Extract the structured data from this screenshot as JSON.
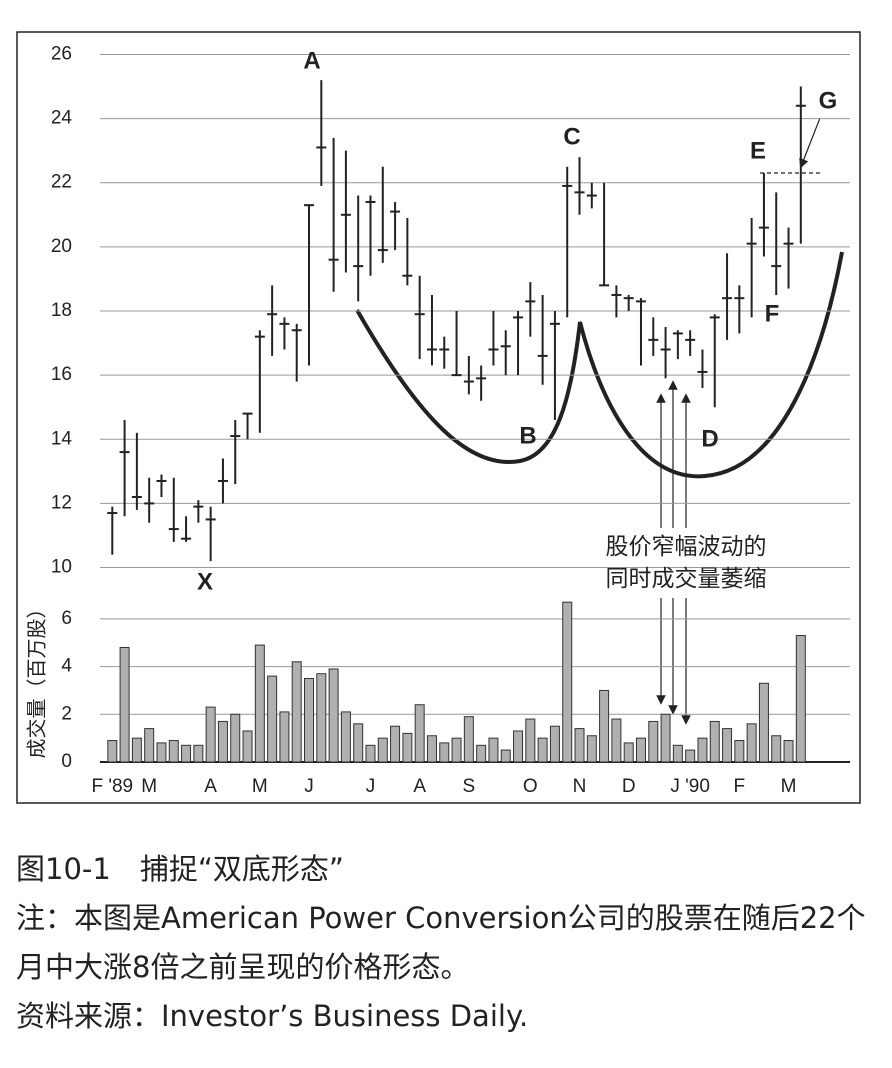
{
  "chart_data": [
    {
      "type": "hlc",
      "x": [
        0,
        1,
        2,
        3,
        4,
        5,
        6,
        7,
        8,
        9,
        10,
        11,
        12,
        13,
        14,
        15,
        16,
        17,
        18,
        19,
        20,
        21,
        22,
        23,
        24,
        25,
        26,
        27,
        28,
        29,
        30,
        31,
        32,
        33,
        34,
        35,
        36,
        37,
        38,
        39,
        40,
        41,
        42,
        43,
        44,
        45,
        46,
        47,
        48,
        49,
        50,
        51,
        52,
        53,
        54,
        55,
        56
      ],
      "high": [
        11.9,
        14.6,
        14.2,
        12.8,
        12.9,
        12.8,
        11.6,
        12.1,
        11.9,
        13.4,
        14.6,
        14.8,
        17.4,
        18.8,
        17.8,
        17.6,
        21.3,
        25.2,
        23.4,
        23.0,
        21.6,
        21.6,
        22.5,
        21.4,
        20.9,
        19.1,
        18.5,
        17.2,
        18.0,
        16.6,
        16.3,
        18.0,
        17.4,
        18.0,
        18.9,
        18.5,
        18.0,
        22.5,
        22.8,
        22.0,
        22.0,
        18.8,
        18.5,
        18.4,
        17.8,
        17.5,
        17.4,
        17.4,
        16.8,
        17.9,
        19.8,
        18.8,
        20.9,
        22.3,
        21.7,
        20.6,
        25.0
      ],
      "low": [
        10.4,
        11.6,
        11.8,
        11.4,
        12.2,
        10.8,
        10.8,
        11.4,
        10.2,
        12.0,
        12.6,
        14.0,
        14.2,
        16.6,
        16.8,
        15.8,
        16.3,
        21.9,
        18.6,
        19.2,
        18.3,
        19.1,
        19.5,
        19.9,
        18.8,
        16.5,
        16.3,
        16.2,
        16.0,
        15.4,
        15.2,
        16.3,
        16.0,
        16.0,
        17.2,
        15.7,
        14.6,
        17.8,
        21.0,
        21.2,
        18.8,
        17.8,
        18.0,
        16.3,
        16.6,
        15.9,
        16.5,
        16.6,
        15.6,
        15.0,
        17.1,
        17.3,
        17.8,
        19.7,
        18.5,
        18.7,
        20.1
      ],
      "close": [
        11.7,
        13.6,
        12.2,
        12.0,
        12.7,
        11.2,
        10.9,
        11.9,
        11.5,
        12.7,
        14.1,
        14.8,
        17.2,
        17.9,
        17.6,
        17.4,
        21.3,
        23.1,
        19.6,
        21.0,
        19.4,
        21.4,
        19.9,
        21.1,
        19.1,
        17.9,
        16.8,
        16.8,
        16.0,
        15.8,
        15.9,
        16.8,
        16.9,
        17.8,
        18.3,
        16.6,
        17.6,
        21.9,
        21.7,
        21.6,
        18.8,
        18.5,
        18.4,
        18.3,
        17.1,
        16.8,
        17.3,
        17.1,
        16.1,
        17.8,
        18.4,
        18.4,
        20.1,
        20.6,
        19.4,
        20.1,
        24.4
      ],
      "xlim": [
        -1,
        60
      ],
      "ylim": [
        9.3,
        26.7
      ],
      "yticks": [
        10,
        12,
        14,
        16,
        18,
        20,
        22,
        24,
        26
      ],
      "grid": true,
      "color": "#222222",
      "annotations": [
        "A",
        "B",
        "C",
        "D",
        "E",
        "F",
        "G",
        "X",
        "股价窄幅波动的",
        "同时成交量萎缩"
      ]
    },
    {
      "type": "bar",
      "x": [
        0,
        1,
        2,
        3,
        4,
        5,
        6,
        7,
        8,
        9,
        10,
        11,
        12,
        13,
        14,
        15,
        16,
        17,
        18,
        19,
        20,
        21,
        22,
        23,
        24,
        25,
        26,
        27,
        28,
        29,
        30,
        31,
        32,
        33,
        34,
        35,
        36,
        37,
        38,
        39,
        40,
        41,
        42,
        43,
        44,
        45,
        46,
        47,
        48,
        49,
        50,
        51,
        52,
        53,
        54,
        55,
        56
      ],
      "values": [
        0.9,
        4.8,
        1.0,
        1.4,
        0.8,
        0.9,
        0.7,
        0.7,
        2.3,
        1.7,
        2.0,
        1.3,
        4.9,
        3.6,
        2.1,
        4.2,
        3.5,
        3.7,
        3.9,
        2.1,
        1.6,
        0.7,
        1.0,
        1.5,
        1.2,
        2.4,
        1.1,
        0.8,
        1.0,
        1.9,
        0.7,
        1.0,
        0.5,
        1.3,
        1.8,
        1.0,
        1.5,
        6.7,
        1.4,
        1.1,
        3.0,
        1.8,
        0.8,
        1.0,
        1.7,
        2.0,
        0.7,
        0.5,
        1.0,
        1.7,
        1.4,
        0.9,
        1.6,
        3.3,
        1.1,
        0.9,
        5.3
      ],
      "y_label": "成交量（百万股）",
      "xlim": [
        -1,
        60
      ],
      "ylim": [
        0,
        7
      ],
      "yticks": [
        0,
        2,
        4,
        6
      ],
      "grid": true,
      "color": "#b0b0b0",
      "xticks": [
        {
          "value": 0,
          "label": "F '89"
        },
        {
          "value": 3,
          "label": "M"
        },
        {
          "value": 8,
          "label": "A"
        },
        {
          "value": 12,
          "label": "M"
        },
        {
          "value": 16,
          "label": "J"
        },
        {
          "value": 21,
          "label": "J"
        },
        {
          "value": 25,
          "label": "A"
        },
        {
          "value": 29,
          "label": "S"
        },
        {
          "value": 34,
          "label": "O"
        },
        {
          "value": 38,
          "label": "N"
        },
        {
          "value": 42,
          "label": "D"
        },
        {
          "value": 47,
          "label": "J '90"
        },
        {
          "value": 51,
          "label": "F"
        },
        {
          "value": 55,
          "label": "M"
        }
      ]
    }
  ],
  "caption": {
    "title": "图10-1　捕捉“双底形态”",
    "note": "注：本图是American Power Conversion公司的股票在随后22个月中大涨8倍之前呈现的价格形态。",
    "source": "资料来源：Investor’s Business Daily."
  }
}
